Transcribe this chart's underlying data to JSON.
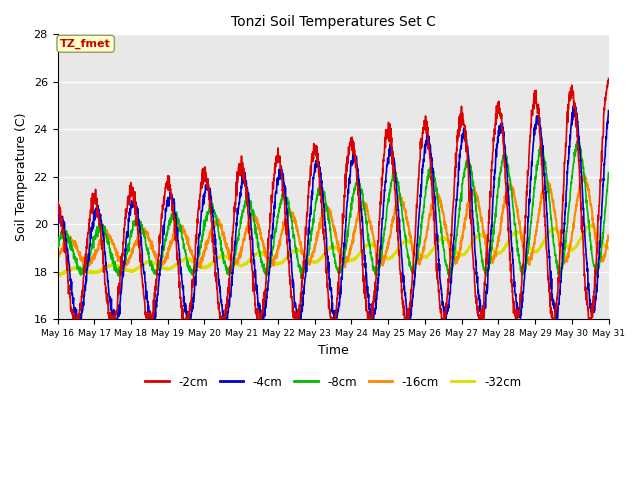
{
  "title": "Tonzi Soil Temperatures Set C",
  "xlabel": "Time",
  "ylabel": "Soil Temperature (C)",
  "annotation": "TZ_fmet",
  "annotation_color": "#cc0000",
  "annotation_bg": "#ffffcc",
  "annotation_border": "#999966",
  "ylim": [
    16,
    28
  ],
  "yticks": [
    16,
    18,
    20,
    22,
    24,
    26,
    28
  ],
  "start_day": 16,
  "end_day": 31,
  "series": {
    "-2cm": {
      "color": "#dd0000",
      "lw": 1.2
    },
    "-4cm": {
      "color": "#0000cc",
      "lw": 1.2
    },
    "-8cm": {
      "color": "#00bb00",
      "lw": 1.2
    },
    "-16cm": {
      "color": "#ff8800",
      "lw": 1.5
    },
    "-32cm": {
      "color": "#dddd00",
      "lw": 1.8
    }
  },
  "bg_color": "#e8e8e8",
  "grid_color": "#ffffff",
  "fig_bg": "#ffffff",
  "n_days": 15,
  "pts_per_day": 144,
  "seed": 1234
}
